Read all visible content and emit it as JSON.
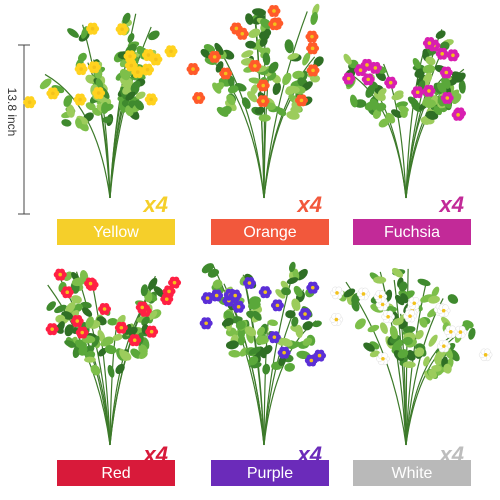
{
  "dimension": {
    "label": "13.8 inch"
  },
  "items": [
    {
      "label": "Yellow",
      "count": "x4",
      "color": "#f5cf2a",
      "flower": "#ffd21f"
    },
    {
      "label": "Orange",
      "count": "x4",
      "color": "#f2583c",
      "flower": "#ff5a2a"
    },
    {
      "label": "Fuchsia",
      "count": "x4",
      "color": "#c22a98",
      "flower": "#d81fb0"
    },
    {
      "label": "Red",
      "count": "x4",
      "color": "#d81a3a",
      "flower": "#ff2044"
    },
    {
      "label": "Purple",
      "count": "x4",
      "color": "#6b2bba",
      "flower": "#5b2fd6"
    },
    {
      "label": "White",
      "count": "x4",
      "color": "#b9b9b9",
      "flower": "#ffffff"
    }
  ]
}
